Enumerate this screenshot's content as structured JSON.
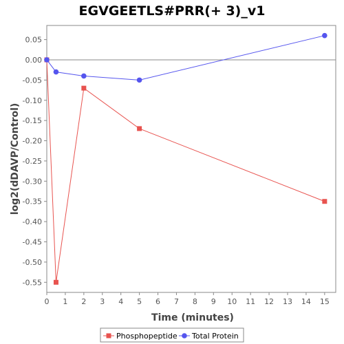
{
  "chart_data": {
    "type": "line",
    "title": "EGVGEETLS#PRR(+ 3)_v1",
    "xlabel": "Time (minutes)",
    "ylabel": "log2(dDAVP/Control)",
    "xlim": [
      0,
      15.6
    ],
    "ylim": [
      -0.575,
      0.085
    ],
    "x_ticks": [
      "0",
      "1",
      "2",
      "3",
      "4",
      "5",
      "6",
      "7",
      "8",
      "9",
      "10",
      "11",
      "12",
      "13",
      "14",
      "15"
    ],
    "y_ticks": [
      "0.05",
      "0.00",
      "-0.05",
      "-0.10",
      "-0.15",
      "-0.20",
      "-0.25",
      "-0.30",
      "-0.35",
      "-0.40",
      "-0.45",
      "-0.50",
      "-0.55"
    ],
    "grid": false,
    "zero_line": true,
    "legend_position": "bottom",
    "series": [
      {
        "name": "Phosphopeptide",
        "color": "#e8534f",
        "marker": "square",
        "x": [
          0,
          0.5,
          2,
          5,
          15
        ],
        "y": [
          0.0,
          -0.55,
          -0.07,
          -0.17,
          -0.35
        ]
      },
      {
        "name": "Total Protein",
        "color": "#5555ee",
        "marker": "circle",
        "x": [
          0,
          0.5,
          2,
          5,
          15
        ],
        "y": [
          0.0,
          -0.03,
          -0.04,
          -0.05,
          0.06
        ]
      }
    ]
  }
}
